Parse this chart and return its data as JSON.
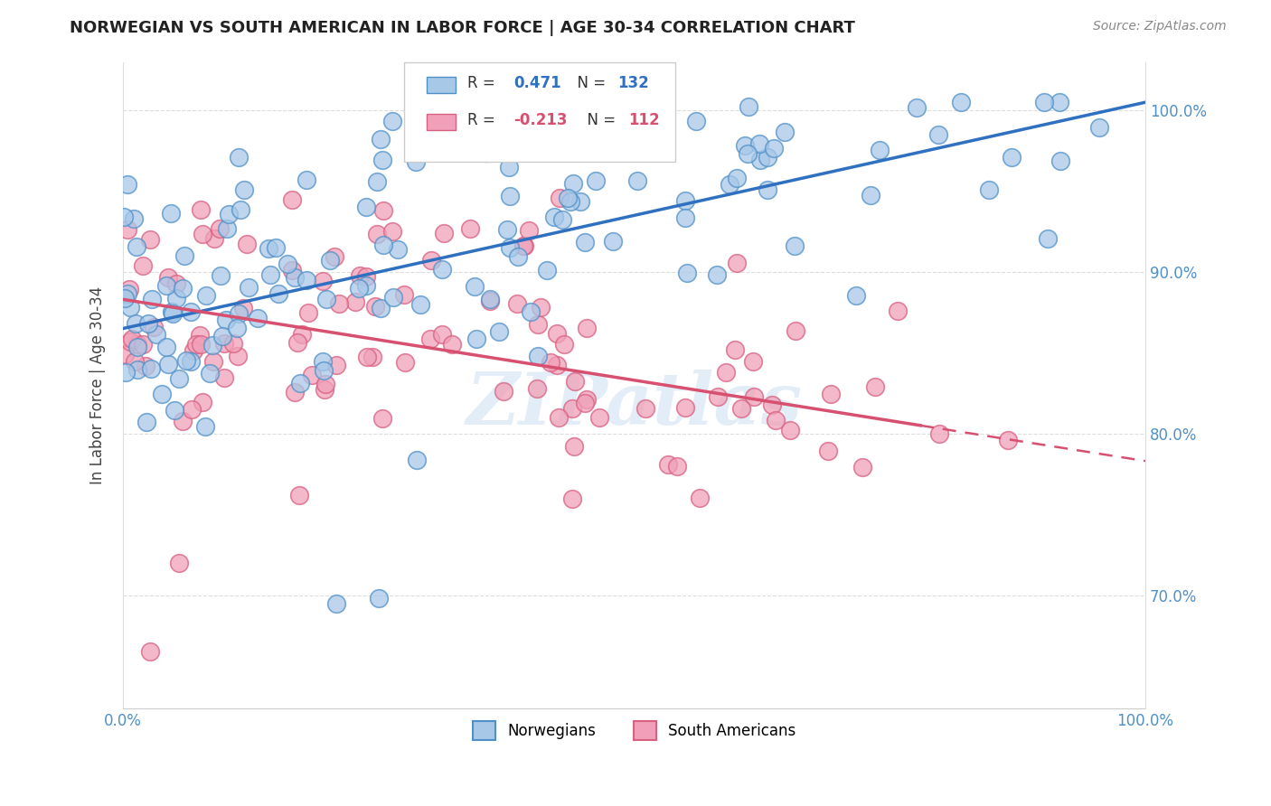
{
  "title": "NORWEGIAN VS SOUTH AMERICAN IN LABOR FORCE | AGE 30-34 CORRELATION CHART",
  "source": "Source: ZipAtlas.com",
  "ylabel": "In Labor Force | Age 30-34",
  "legend_norwegian": "Norwegians",
  "legend_south_american": "South Americans",
  "r_norwegian": "0.471",
  "n_norwegian": "132",
  "r_south_american": "-0.213",
  "n_south_american": "112",
  "color_norwegian_fill": "#a8c8e8",
  "color_norwegian_edge": "#5090c8",
  "color_south_american_fill": "#f0a0b8",
  "color_south_american_edge": "#d86080",
  "color_nor_line": "#3070c0",
  "color_sa_line": "#d85070",
  "watermark": "ZIPatlas",
  "xlim": [
    0.0,
    1.0
  ],
  "ylim": [
    0.63,
    1.03
  ],
  "yticks": [
    0.7,
    0.8,
    0.9,
    1.0
  ],
  "nor_line_x0": 0.0,
  "nor_line_y0": 0.865,
  "nor_line_x1": 1.0,
  "nor_line_y1": 1.005,
  "sa_line_x0": 0.0,
  "sa_line_y0": 0.883,
  "sa_line_x1": 1.0,
  "sa_line_y1": 0.783,
  "sa_line_solid_end": 0.78,
  "sa_line_dash_start": 0.78
}
